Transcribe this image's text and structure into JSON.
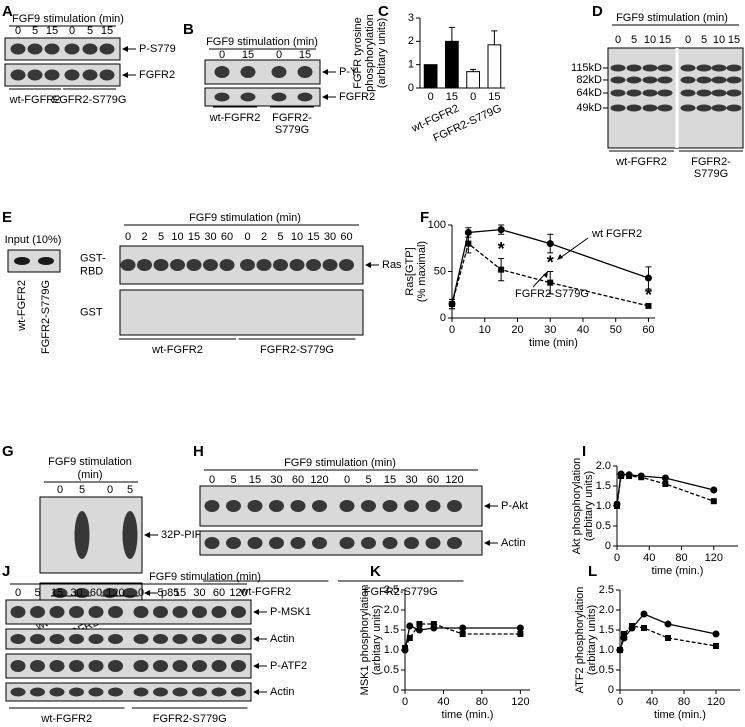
{
  "blots": [
    {
      "panel": "A",
      "title": "FGF9 stimulation (min)",
      "lanes": [
        "0",
        "5",
        "15",
        "0",
        "5",
        "15"
      ],
      "rows": [
        {
          "right": "P-S779"
        },
        {
          "right": "FGFR2"
        }
      ],
      "groups": [
        [
          "wt-FGFR2"
        ],
        [
          "FGFR2-S779G"
        ]
      ]
    },
    {
      "panel": "B",
      "title": "FGF9 stimulation (min)",
      "lanes": [
        "0",
        "15",
        "0",
        "15"
      ],
      "rows": [
        {
          "right": "P-Y"
        },
        {
          "right": "FGFR2"
        }
      ],
      "groups": [
        [
          "wt-FGFR2"
        ],
        [
          "FGFR2-",
          "S779G"
        ]
      ]
    },
    {
      "panel": "D",
      "title": "FGF9 stimulation (min)",
      "lanes": [
        "0",
        "5",
        "10",
        "15",
        "0",
        "5",
        "10",
        "15"
      ],
      "rows": [
        {}
      ],
      "markers": [
        "115kD",
        "82kD",
        "64kD",
        "49kD"
      ],
      "groups": [
        [
          "wt-FGFR2"
        ],
        [
          "FGFR2-",
          "S779G"
        ]
      ]
    },
    {
      "panel": "E",
      "title": "FGF9 stimulation (min)",
      "input": {
        "label": "Input (10%)",
        "lanes": [
          "wt-FGFR2",
          "FGFR2-S779G"
        ]
      },
      "lanes": [
        "0",
        "2",
        "5",
        "10",
        "15",
        "30",
        "60",
        "0",
        "2",
        "5",
        "10",
        "15",
        "30",
        "60"
      ],
      "rows": [
        {
          "left": [
            "GST-",
            "RBD"
          ],
          "right": "Ras"
        },
        {
          "left": [
            "GST"
          ]
        }
      ],
      "groups": [
        [
          "wt-FGFR2"
        ],
        [
          "FGFR2-S779G"
        ]
      ]
    },
    {
      "panel": "G",
      "title": [
        "FGF9 stimulation",
        "(min)"
      ],
      "lanes": [
        "0",
        "5",
        "0",
        "5"
      ],
      "rows": [
        {
          "right": "32P-PIP"
        },
        {
          "right": "p85"
        }
      ],
      "groups": [
        [
          "wt-FGFR2"
        ],
        [
          "FGFR2-S779G"
        ]
      ]
    },
    {
      "panel": "H",
      "title": "FGF9 stimulation (min)",
      "lanes": [
        "0",
        "5",
        "15",
        "30",
        "60",
        "120",
        "0",
        "5",
        "15",
        "30",
        "60",
        "120"
      ],
      "rows": [
        {
          "right": "P-Akt"
        },
        {
          "right": "Actin"
        }
      ],
      "groups": [
        [
          "wt-FGFR2"
        ],
        [
          "FGFR2-S779G"
        ]
      ]
    },
    {
      "panel": "J",
      "title": "FGF9 stimulation (min)",
      "lanes": [
        "0",
        "5",
        "15",
        "30",
        "60",
        "120",
        "0",
        "5",
        "15",
        "30",
        "60",
        "120"
      ],
      "rows": [
        {
          "right": "P-MSK1"
        },
        {
          "right": "Actin"
        },
        {
          "right": "P-ATF2"
        },
        {
          "right": "Actin"
        }
      ],
      "groups": [
        [
          "wt-FGFR2"
        ],
        [
          "FGFR2-S779G"
        ]
      ]
    }
  ],
  "chart_data": [
    {
      "panel": "C",
      "type": "bar",
      "ylabel": [
        "FGFR tyrosine",
        "phosphorylation",
        "(arbitary units)"
      ],
      "categories": [
        "0",
        "15",
        "0",
        "15"
      ],
      "groups": [
        "wt-FGFR2",
        "FGFR2-S779G"
      ],
      "values": [
        1,
        2.0,
        0.7,
        1.85
      ],
      "errors": [
        0,
        0.6,
        0.1,
        0.6
      ],
      "colors": [
        "#000000",
        "#000000",
        "#ffffff",
        "#ffffff"
      ],
      "ylim": [
        0,
        3
      ],
      "yticks": [
        0,
        1,
        2,
        3
      ]
    },
    {
      "panel": "F",
      "type": "line",
      "ylabel": [
        "Ras[GTP]",
        "(% maximal)"
      ],
      "xlabel": "time (min)",
      "x": [
        0,
        5,
        15,
        30,
        60
      ],
      "xlim": [
        0,
        62
      ],
      "xticks": [
        0,
        10,
        20,
        30,
        40,
        50,
        60
      ],
      "ylim": [
        0,
        100
      ],
      "yticks": [
        0,
        50,
        100
      ],
      "series": [
        {
          "name": "wt FGFR2",
          "color": "#000000",
          "marker": "circle",
          "dashed": false,
          "values": [
            15,
            92,
            95,
            80,
            43
          ],
          "errors": [
            5,
            5,
            5,
            10,
            12
          ]
        },
        {
          "name": "FGFR2-S779G",
          "color": "#000000",
          "marker": "square",
          "dashed": true,
          "values": [
            15,
            80,
            52,
            38,
            13
          ],
          "errors": [
            5,
            10,
            12,
            12,
            2
          ]
        }
      ],
      "asterisks": [
        "*",
        "*",
        "*"
      ]
    },
    {
      "panel": "I",
      "type": "line",
      "ylabel": [
        "Akt phosphorylation",
        "(arbitary units)"
      ],
      "xlabel": "time (min.)",
      "x": [
        0,
        5,
        15,
        30,
        60,
        120
      ],
      "xlim": [
        0,
        150
      ],
      "xticks": [
        0,
        40,
        80,
        120
      ],
      "ylim": [
        0,
        2
      ],
      "yticks": [
        0,
        0.5,
        {
          "value": 1,
          "label": "1.0"
        },
        1.5,
        {
          "value": 2,
          "label": "2.0"
        }
      ],
      "series": [
        {
          "color": "#000000",
          "marker": "circle",
          "dashed": false,
          "values": [
            1.05,
            1.8,
            1.78,
            1.75,
            1.7,
            1.4
          ]
        },
        {
          "color": "#000000",
          "marker": "square",
          "dashed": true,
          "values": [
            1.0,
            1.75,
            1.75,
            1.72,
            1.55,
            1.12
          ]
        }
      ]
    },
    {
      "panel": "K",
      "type": "line",
      "ylabel": [
        "MSK1 phosphorylation",
        "(arbitary units)"
      ],
      "xlabel": "time (min.)",
      "x": [
        0,
        5,
        15,
        30,
        60,
        120
      ],
      "xlim": [
        0,
        130
      ],
      "xticks": [
        0,
        40,
        80,
        120
      ],
      "ylim": [
        0,
        2.5
      ],
      "yticks": [
        0,
        0.5,
        {
          "value": 1,
          "label": "1.0"
        },
        1.5,
        {
          "value": 2,
          "label": "2.0"
        },
        2.5
      ],
      "series": [
        {
          "color": "#000000",
          "marker": "circle",
          "dashed": false,
          "values": [
            1.0,
            1.6,
            1.5,
            1.55,
            1.55,
            1.55
          ]
        },
        {
          "color": "#000000",
          "marker": "square",
          "dashed": true,
          "values": [
            1.05,
            1.3,
            1.65,
            1.65,
            1.4,
            1.4
          ]
        }
      ]
    },
    {
      "panel": "L",
      "type": "line",
      "ylabel": [
        "ATF2 phosphorylation",
        "(arbitary units)"
      ],
      "xlabel": "time (min.)",
      "x": [
        0,
        5,
        15,
        30,
        60,
        120
      ],
      "xlim": [
        0,
        150
      ],
      "xticks": [
        0,
        40,
        80,
        120
      ],
      "ylim": [
        0,
        2.5
      ],
      "yticks": [
        0,
        0.5,
        {
          "value": 1,
          "label": "1.0"
        },
        1.5,
        {
          "value": 2,
          "label": "2.0"
        },
        2.5
      ],
      "series": [
        {
          "color": "#000000",
          "marker": "circle",
          "dashed": false,
          "values": [
            1.0,
            1.3,
            1.55,
            1.9,
            1.65,
            1.4
          ]
        },
        {
          "color": "#000000",
          "marker": "square",
          "dashed": true,
          "values": [
            1.0,
            1.4,
            1.6,
            1.55,
            1.3,
            1.1
          ]
        }
      ]
    }
  ]
}
